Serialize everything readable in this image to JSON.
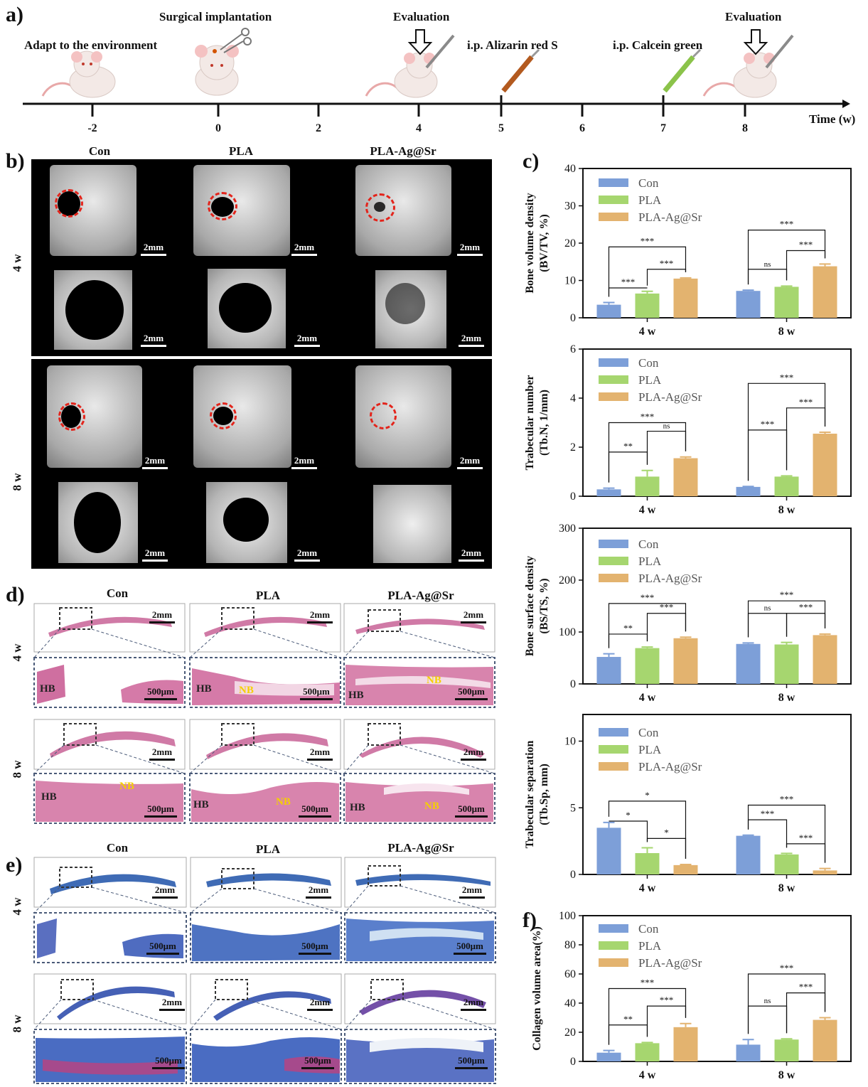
{
  "panel_letters": {
    "a": "a)",
    "b": "b)",
    "c": "c)",
    "d": "d)",
    "e": "e)",
    "f": "f)"
  },
  "timeline": {
    "ticks": [
      "-2",
      "0",
      "2",
      "4",
      "5",
      "6",
      "7",
      "8"
    ],
    "axis_label": "Time (w)",
    "events": {
      "adapt": "Adapt to the environment",
      "surgery": "Surgical implantation",
      "eval1": "Evaluation",
      "alizarin": "i.p. Alizarin red S",
      "calcein": "i.p. Calcein green",
      "eval2": "Evaluation"
    }
  },
  "groups": [
    "Con",
    "PLA",
    "PLA-Ag@Sr"
  ],
  "rows": [
    "4 w",
    "8 w"
  ],
  "scale": {
    "mm": "2mm",
    "um": "500μm"
  },
  "histo_tags": {
    "hb": "HB",
    "nb": "NB"
  },
  "colors": {
    "con": "#7d9fd8",
    "pla": "#a6d66f",
    "plaagsr": "#e3b36f",
    "circle": "#e3241b"
  },
  "chart_data": [
    {
      "type": "bar",
      "ylabel": "Bone volume density (BV/TV, %)",
      "ylabel_lines": [
        "Bone volume density",
        "(BV/TV, %)"
      ],
      "ylim": [
        0,
        40
      ],
      "yticks": [
        "0",
        "10",
        "20",
        "30",
        "40"
      ],
      "categories": [
        "4 w",
        "8 w"
      ],
      "series": [
        {
          "name": "Con",
          "values": [
            3.5,
            7.2
          ],
          "errors": [
            0.6,
            0.2
          ]
        },
        {
          "name": "PLA",
          "values": [
            6.5,
            8.3
          ],
          "errors": [
            0.6,
            0.2
          ]
        },
        {
          "name": "PLA-Ag@Sr",
          "values": [
            10.5,
            13.8
          ],
          "errors": [
            0.2,
            0.6
          ]
        }
      ],
      "significance": [
        {
          "group": 0,
          "from": 0,
          "to": 1,
          "level": 8,
          "label": "***"
        },
        {
          "group": 0,
          "from": 1,
          "to": 2,
          "level": 13,
          "label": "***"
        },
        {
          "group": 0,
          "from": 0,
          "to": 2,
          "level": 19,
          "label": "***"
        },
        {
          "group": 1,
          "from": 0,
          "to": 1,
          "level": 13,
          "label": "ns"
        },
        {
          "group": 1,
          "from": 1,
          "to": 2,
          "level": 18,
          "label": "***"
        },
        {
          "group": 1,
          "from": 0,
          "to": 2,
          "level": 23.5,
          "label": "***"
        }
      ]
    },
    {
      "type": "bar",
      "ylabel": "Trabecular number (Tb.N, 1/mm)",
      "ylabel_lines": [
        "Trabecular number",
        "(Tb.N, 1/mm)"
      ],
      "ylim": [
        0,
        6
      ],
      "yticks": [
        "0",
        "2",
        "4",
        "6"
      ],
      "categories": [
        "4 w",
        "8 w"
      ],
      "series": [
        {
          "name": "Con",
          "values": [
            0.28,
            0.38
          ],
          "errors": [
            0.05,
            0.02
          ]
        },
        {
          "name": "PLA",
          "values": [
            0.8,
            0.8
          ],
          "errors": [
            0.25,
            0.03
          ]
        },
        {
          "name": "PLA-Ag@Sr",
          "values": [
            1.55,
            2.55
          ],
          "errors": [
            0.05,
            0.06
          ]
        }
      ],
      "significance": [
        {
          "group": 0,
          "from": 0,
          "to": 1,
          "level": 1.8,
          "label": "**"
        },
        {
          "group": 0,
          "from": 1,
          "to": 2,
          "level": 2.65,
          "label": "ns"
        },
        {
          "group": 0,
          "from": 0,
          "to": 2,
          "level": 3.0,
          "label": "***"
        },
        {
          "group": 1,
          "from": 0,
          "to": 1,
          "level": 2.7,
          "label": "***"
        },
        {
          "group": 1,
          "from": 1,
          "to": 2,
          "level": 3.6,
          "label": "***"
        },
        {
          "group": 1,
          "from": 0,
          "to": 2,
          "level": 4.6,
          "label": "***"
        }
      ]
    },
    {
      "type": "bar",
      "ylabel": "Bone surface density (BS/TS, %)",
      "ylabel_lines": [
        "Bone surface density",
        "(BS/TS, %)"
      ],
      "ylim": [
        0,
        300
      ],
      "yticks": [
        "0",
        "100",
        "200",
        "300"
      ],
      "categories": [
        "4 w",
        "8 w"
      ],
      "series": [
        {
          "name": "Con",
          "values": [
            52,
            77
          ],
          "errors": [
            6,
            2
          ]
        },
        {
          "name": "PLA",
          "values": [
            69,
            76
          ],
          "errors": [
            2,
            4
          ]
        },
        {
          "name": "PLA-Ag@Sr",
          "values": [
            88,
            94
          ],
          "errors": [
            2,
            2
          ]
        }
      ],
      "significance": [
        {
          "group": 0,
          "from": 0,
          "to": 1,
          "level": 96,
          "label": "**"
        },
        {
          "group": 0,
          "from": 1,
          "to": 2,
          "level": 136,
          "label": "***"
        },
        {
          "group": 0,
          "from": 0,
          "to": 2,
          "level": 155,
          "label": "***"
        },
        {
          "group": 1,
          "from": 0,
          "to": 1,
          "level": 136,
          "label": "ns"
        },
        {
          "group": 1,
          "from": 1,
          "to": 2,
          "level": 136,
          "label": "***"
        },
        {
          "group": 1,
          "from": 0,
          "to": 2,
          "level": 160,
          "label": "***"
        }
      ]
    },
    {
      "type": "bar",
      "ylabel": "Trabecular separation (Tb.Sp, mm)",
      "ylabel_lines": [
        "Trabecular separation",
        "(Tb.Sp, mm)"
      ],
      "ylim": [
        0,
        12
      ],
      "yticks": [
        "0",
        "5",
        "10"
      ],
      "categories": [
        "4 w",
        "8 w"
      ],
      "series": [
        {
          "name": "Con",
          "values": [
            3.5,
            2.9
          ],
          "errors": [
            0.4,
            0.05
          ]
        },
        {
          "name": "PLA",
          "values": [
            1.6,
            1.5
          ],
          "errors": [
            0.4,
            0.08
          ]
        },
        {
          "name": "PLA-Ag@Sr",
          "values": [
            0.7,
            0.3
          ],
          "errors": [
            0.05,
            0.15
          ]
        }
      ],
      "significance": [
        {
          "group": 0,
          "from": 0,
          "to": 1,
          "level": 4.0,
          "label": "*"
        },
        {
          "group": 0,
          "from": 0,
          "to": 2,
          "level": 5.5,
          "label": "*"
        },
        {
          "group": 0,
          "from": 1,
          "to": 2,
          "level": 2.7,
          "label": "*"
        },
        {
          "group": 1,
          "from": 0,
          "to": 1,
          "level": 4.1,
          "label": "***"
        },
        {
          "group": 1,
          "from": 0,
          "to": 2,
          "level": 5.2,
          "label": "***"
        },
        {
          "group": 1,
          "from": 1,
          "to": 2,
          "level": 2.3,
          "label": "***"
        }
      ]
    },
    {
      "type": "bar",
      "ylabel": "Collagen volume area(%)",
      "ylabel_lines": [
        "Collagen volume area(%)"
      ],
      "ylim": [
        0,
        100
      ],
      "yticks": [
        "0",
        "20",
        "40",
        "60",
        "80",
        "100"
      ],
      "categories": [
        "4 w",
        "8 w"
      ],
      "series": [
        {
          "name": "Con",
          "values": [
            6,
            11.5
          ],
          "errors": [
            1.5,
            3.5
          ]
        },
        {
          "name": "PLA",
          "values": [
            12.5,
            15
          ],
          "errors": [
            0.5,
            0.5
          ]
        },
        {
          "name": "PLA-Ag@Sr",
          "values": [
            23.5,
            28.5
          ],
          "errors": [
            2.5,
            1.5
          ]
        }
      ],
      "significance": [
        {
          "group": 0,
          "from": 0,
          "to": 1,
          "level": 25,
          "label": "**"
        },
        {
          "group": 0,
          "from": 1,
          "to": 2,
          "level": 38,
          "label": "***"
        },
        {
          "group": 0,
          "from": 0,
          "to": 2,
          "level": 50,
          "label": "***"
        },
        {
          "group": 1,
          "from": 0,
          "to": 1,
          "level": 38,
          "label": "ns"
        },
        {
          "group": 1,
          "from": 1,
          "to": 2,
          "level": 47,
          "label": "***"
        },
        {
          "group": 1,
          "from": 0,
          "to": 2,
          "level": 60,
          "label": "***"
        }
      ]
    }
  ]
}
